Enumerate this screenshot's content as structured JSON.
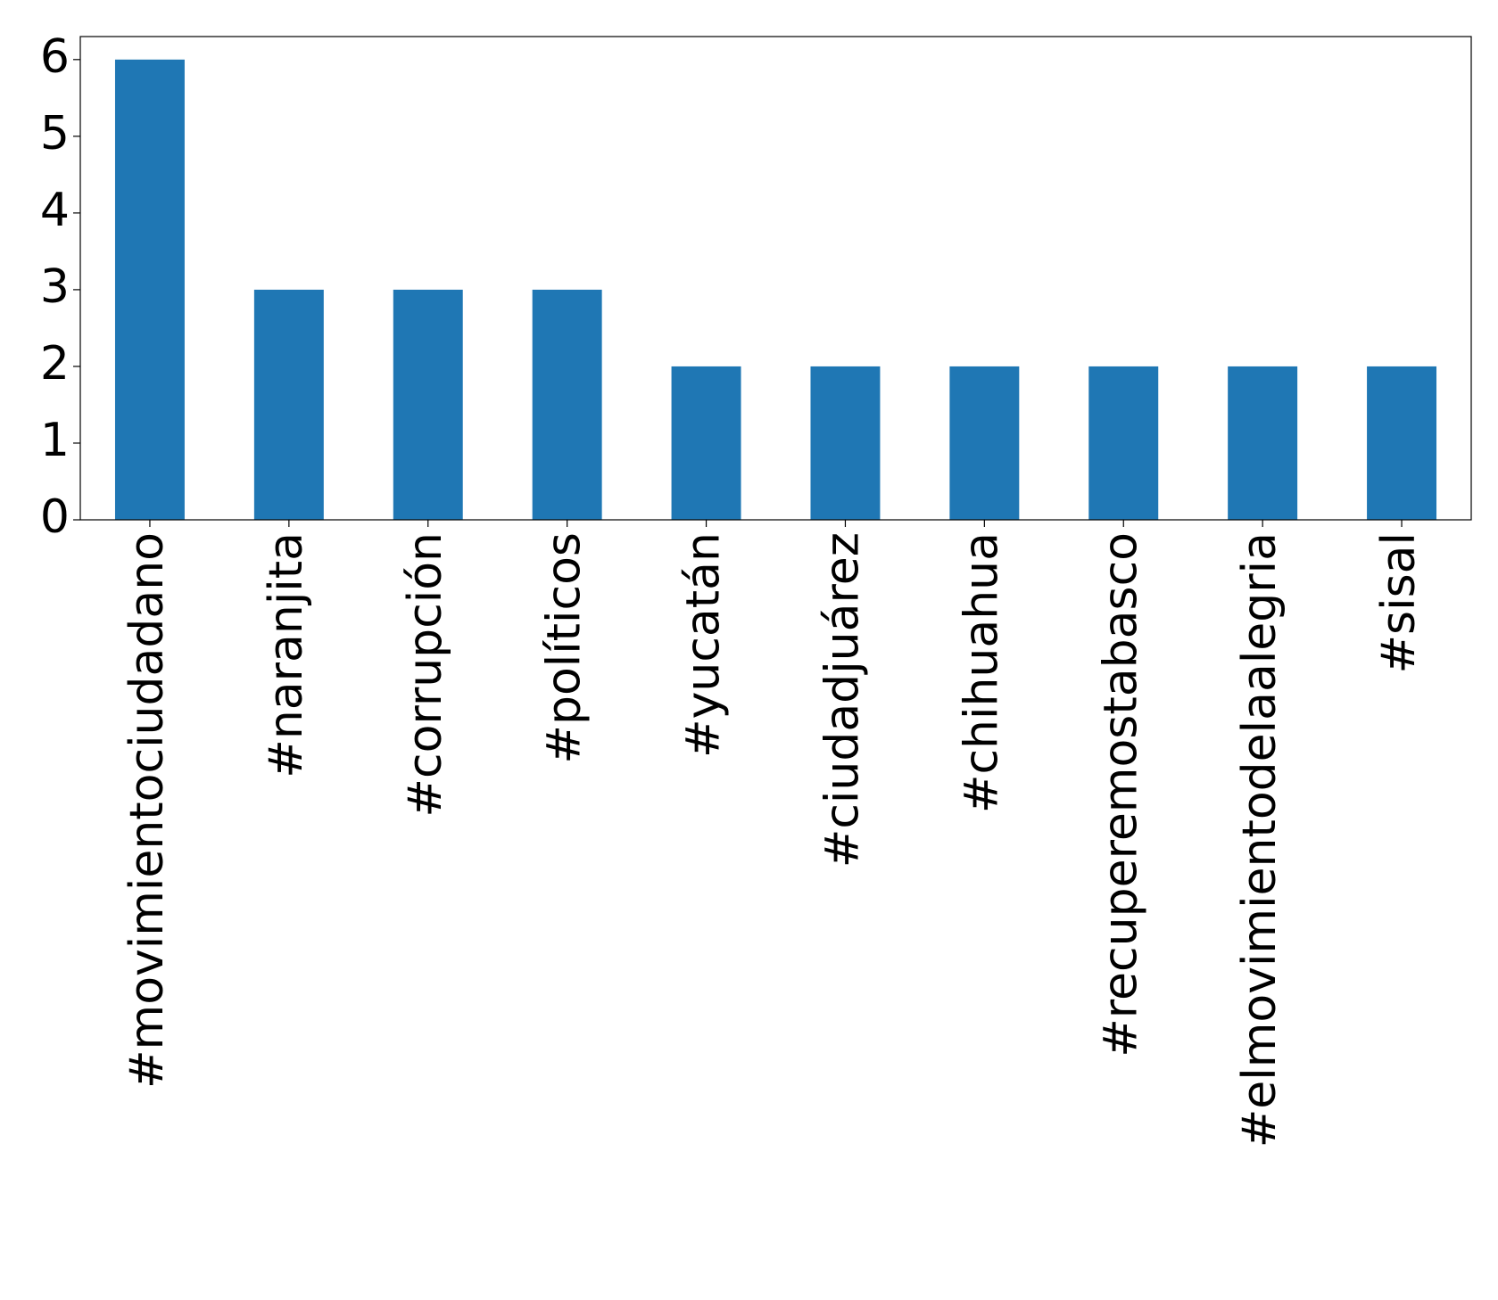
{
  "chart_data": {
    "type": "bar",
    "categories": [
      "#movimientociudadano",
      "#naranjita",
      "#corrupción",
      "#políticos",
      "#yucatán",
      "#ciudadjuárez",
      "#chihuahua",
      "#recuperemostabasco",
      "#elmovimientodelaalegria",
      "#sisal"
    ],
    "values": [
      6,
      3,
      3,
      3,
      2,
      2,
      2,
      2,
      2,
      2
    ],
    "color": "#1f77b4",
    "ylim": [
      0,
      6.3
    ],
    "yticks": [
      0,
      1,
      2,
      3,
      4,
      5,
      6
    ],
    "grid": false
  }
}
